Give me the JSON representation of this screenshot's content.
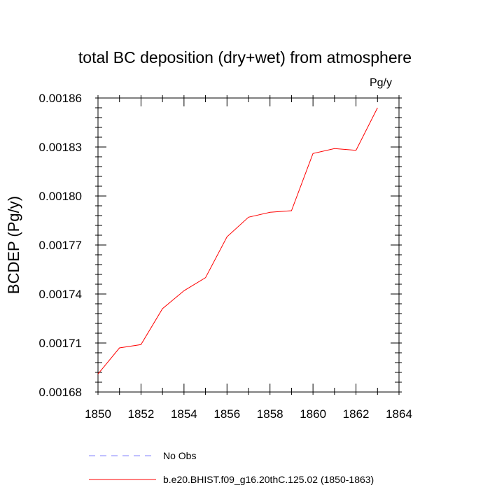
{
  "chart_data": {
    "type": "line",
    "title": "total BC deposition (dry+wet) from atmosphere",
    "units_label": "Pg/y",
    "xlabel": "",
    "ylabel": "BCDEP  (Pg/y)",
    "xlim": [
      1850,
      1864
    ],
    "ylim": [
      0.00168,
      0.00186
    ],
    "x_ticks": [
      "1850",
      "1852",
      "1854",
      "1856",
      "1858",
      "1860",
      "1862",
      "1864"
    ],
    "y_ticks": [
      "0.00168",
      "0.00171",
      "0.00174",
      "0.00177",
      "0.00180",
      "0.00183",
      "0.00186"
    ],
    "series": [
      {
        "name": "b.e20.BHIST.f09_g16.20thC.125.02 (1850-1863)",
        "color": "#ff0000",
        "dash": "solid",
        "x": [
          1850,
          1851,
          1852,
          1853,
          1854,
          1855,
          1856,
          1857,
          1858,
          1859,
          1860,
          1861,
          1862,
          1863
        ],
        "values": [
          0.001691,
          0.001707,
          0.001709,
          0.001731,
          0.001742,
          0.00175,
          0.001775,
          0.001787,
          0.00179,
          0.001791,
          0.001826,
          0.001829,
          0.001828,
          0.001854
        ]
      }
    ],
    "legend": [
      {
        "label": "No Obs",
        "color": "#8080ff",
        "dash": "dashed"
      },
      {
        "label": "b.e20.BHIST.f09_g16.20thC.125.02 (1850-1863)",
        "color": "#ff0000",
        "dash": "solid"
      }
    ]
  }
}
